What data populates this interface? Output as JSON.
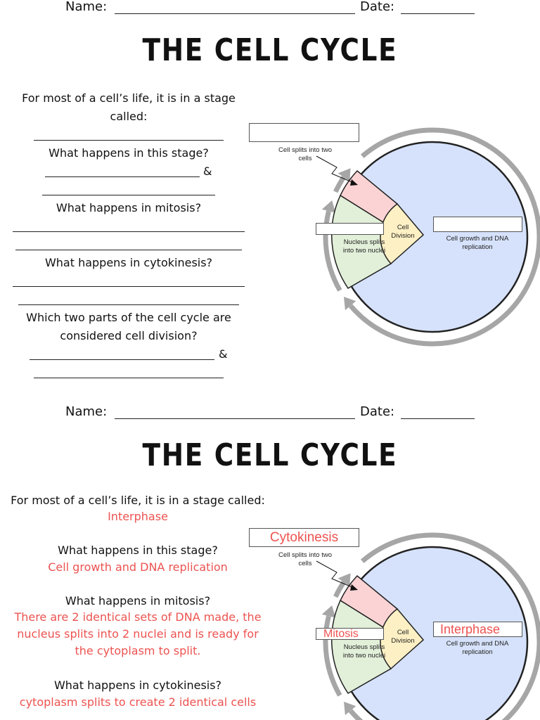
{
  "worksheet": {
    "name_label": "Name:",
    "date_label": "Date:",
    "title": "THE CELL CYCLE",
    "questions": [
      "For most of a cell’s life, it is in a stage called:",
      "What happens in this stage?",
      "What happens in mitosis?",
      "What happens in cytokinesis?",
      "Which two parts of the cell cycle are considered cell division?"
    ],
    "ampersand": "&",
    "diagram": {
      "split_label": "Cell splits into two cells",
      "division_label": "Cell Division",
      "nucleus_label": "Nucleus splits into two nuclei",
      "growth_label": "Cell growth and DNA replication"
    }
  },
  "answer_key": {
    "name_label": "Name:",
    "date_label": "Date:",
    "title": "THE CELL CYCLE",
    "questions": [
      "For most of a cell’s life, it is in a stage called:",
      "What happens in this stage?",
      "What happens in mitosis?",
      "What happens in cytokinesis?"
    ],
    "answers": [
      "Interphase",
      "Cell growth and DNA replication",
      "There are 2 identical sets of DNA made, the nucleus splits into 2 nuclei and is ready for the cytoplasm to split.",
      "cytoplasm splits to create 2 identical cells"
    ],
    "diagram": {
      "split_label": "Cell splits into two cells",
      "division_label": "Cell Division",
      "nucleus_label": "Nucleus splits into two nuclei",
      "growth_label": "Cell growth and DNA replication",
      "cytokinesis_box": "Cytokinesis",
      "mitosis_box": "Mitosis",
      "interphase_box": "Interphase"
    }
  }
}
